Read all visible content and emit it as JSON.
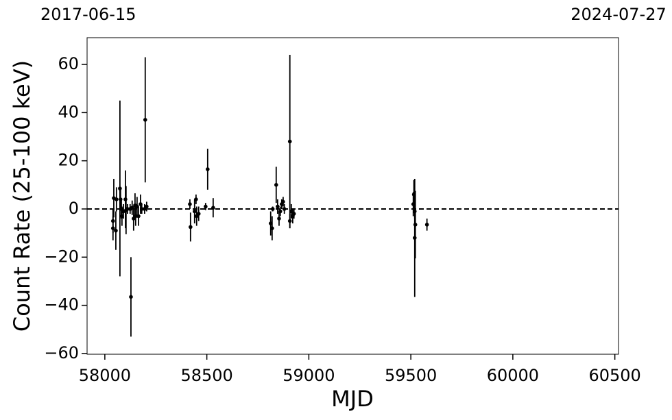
{
  "chart_data": {
    "type": "scatter",
    "xlabel": "MJD",
    "ylabel": "Count Rate (25-100 keV)",
    "x": [
      58040,
      58040,
      58044,
      58054,
      58057,
      58074,
      58077,
      58081,
      58084,
      58091,
      58101,
      58104,
      58111,
      58124,
      58128,
      58134,
      58141,
      58148,
      58151,
      58158,
      58165,
      58175,
      58181,
      58195,
      58198,
      58205,
      58417,
      58420,
      58440,
      58447,
      58450,
      58460,
      58494,
      58504,
      58531,
      58813,
      58820,
      58823,
      58840,
      58847,
      58854,
      58860,
      58867,
      58874,
      58880,
      58907,
      58907,
      58914,
      58921,
      58927,
      59512,
      59515,
      59519,
      59519,
      59522,
      59579
    ],
    "y": [
      -8,
      -5,
      4.5,
      -9,
      4,
      8.5,
      4,
      0,
      -3,
      -1,
      4,
      -0.5,
      0,
      0,
      -36.5,
      0.5,
      -4,
      1.5,
      -3,
      1,
      -3,
      2,
      0,
      0,
      37,
      1,
      2,
      -7.5,
      -1,
      4,
      -3,
      -2,
      1,
      16.5,
      0.5,
      -6,
      -8,
      0,
      10,
      1,
      -4,
      -1,
      2,
      3,
      0,
      28,
      -5,
      -1,
      -3,
      -2,
      2,
      6,
      -1,
      -12,
      -6.5,
      -6.5
    ],
    "yerr": [
      5,
      5,
      8,
      8,
      5,
      36.5,
      4,
      4,
      4,
      3,
      12,
      10,
      2,
      2,
      16.5,
      3,
      5,
      5,
      4,
      4,
      4,
      4,
      2,
      2,
      26,
      2,
      2,
      6,
      5,
      2,
      4,
      3,
      1.5,
      8.5,
      4,
      5,
      5,
      1,
      7.5,
      3,
      3,
      2,
      2,
      2,
      2,
      36,
      3,
      3,
      3,
      2,
      5,
      6,
      3,
      24.5,
      14,
      2.5
    ],
    "color": "#000000",
    "xlim": [
      57913,
      60518
    ],
    "ylim": [
      -60.3,
      71.1
    ],
    "xticks": [
      58000,
      58500,
      59000,
      59500,
      60000,
      60500
    ],
    "yticks": [
      {
        "value": -60,
        "label": "−60"
      },
      {
        "value": -40,
        "label": "−40"
      },
      {
        "value": -20,
        "label": "−20"
      },
      0,
      20,
      40,
      60
    ],
    "top_xticks": [
      {
        "value": 57919,
        "label": "2017-06-15"
      },
      {
        "value": 60518,
        "label": "2024-07-27"
      }
    ],
    "hline": 0
  }
}
